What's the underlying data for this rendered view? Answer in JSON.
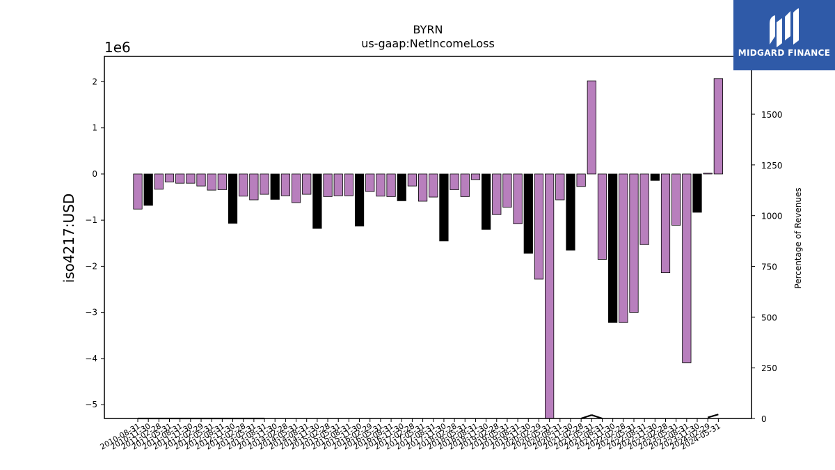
{
  "chart_data": {
    "type": "bar",
    "title": "BYRN",
    "subtitle": "us-gaap:NetIncomeLoss",
    "ylabel": "iso4217:USD",
    "y_offset_label": "1e6",
    "y2label": "Percentage of Revenues",
    "ylim": [
      -5.3,
      2.55
    ],
    "y2lim": [
      0,
      1785
    ],
    "yticks": [
      "2",
      "1",
      "0",
      "−1",
      "−2",
      "−3",
      "−4",
      "−5"
    ],
    "y2ticks": [
      "1750",
      "1500",
      "1250",
      "1000",
      "750",
      "500",
      "250",
      "0"
    ],
    "grid": false,
    "categories": [
      "2010-08-31",
      "2010-11-30",
      "2011-02-28",
      "2011-05-31",
      "2011-08-31",
      "2011-11-30",
      "2012-02-29",
      "2012-05-31",
      "2012-08-31",
      "2012-11-30",
      "2013-02-28",
      "2013-05-31",
      "2013-08-31",
      "2013-11-30",
      "2014-02-28",
      "2014-05-31",
      "2014-08-31",
      "2014-11-30",
      "2015-02-28",
      "2015-05-31",
      "2015-08-31",
      "2015-11-30",
      "2016-02-29",
      "2016-05-31",
      "2016-08-31",
      "2016-11-30",
      "2017-02-28",
      "2017-05-31",
      "2017-08-31",
      "2017-11-30",
      "2018-02-28",
      "2018-05-31",
      "2018-08-31",
      "2018-11-30",
      "2019-02-28",
      "2019-05-31",
      "2019-08-31",
      "2019-11-30",
      "2020-02-29",
      "2020-05-31",
      "2020-08-31",
      "2020-11-30",
      "2021-02-28",
      "2021-05-31",
      "2021-08-31",
      "2021-11-30",
      "2022-02-28",
      "2022-05-31",
      "2022-08-31",
      "2022-11-30",
      "2023-02-28",
      "2023-05-31",
      "2023-08-31",
      "2023-11-30",
      "2024-02-29",
      "2024-05-31"
    ],
    "values": [
      -0.76,
      -0.68,
      -0.33,
      -0.17,
      -0.2,
      -0.2,
      -0.26,
      -0.35,
      -0.34,
      -1.07,
      -0.48,
      -0.56,
      -0.44,
      -0.55,
      -0.47,
      -0.62,
      -0.44,
      -1.18,
      -0.49,
      -0.47,
      -0.47,
      -1.13,
      -0.38,
      -0.48,
      -0.49,
      -0.58,
      -0.26,
      -0.59,
      -0.5,
      -1.45,
      -0.34,
      -0.49,
      -0.12,
      -1.2,
      -0.88,
      -0.72,
      -1.08,
      -1.72,
      -2.28,
      -5.4,
      -0.56,
      -1.65,
      -0.27,
      2.02,
      -1.85,
      -3.22,
      -3.22,
      -3.0,
      -1.53,
      -0.14,
      -2.14,
      -1.11,
      -4.09,
      -0.83,
      0.02,
      2.07
    ],
    "highlighted": [
      1,
      9,
      13,
      17,
      21,
      25,
      29,
      33,
      37,
      41,
      45,
      49,
      53
    ],
    "colors": {
      "bar": "#b87fbd",
      "highlight": "#000000",
      "edge": "#000000",
      "line": "#000000"
    },
    "pct_of_revenues": [
      0,
      0,
      0,
      0,
      0,
      0,
      0,
      0,
      0,
      0,
      0,
      0,
      0,
      null,
      null,
      0,
      null,
      null,
      null,
      0,
      null,
      null,
      null,
      null,
      null,
      null,
      null,
      null,
      null,
      null,
      null,
      null,
      null,
      null,
      null,
      null,
      null,
      null,
      null,
      null,
      null,
      null,
      0,
      17,
      0,
      null,
      null,
      null,
      null,
      0,
      null,
      null,
      null,
      null,
      5,
      20
    ]
  },
  "logo": {
    "name": "MIDGARD FINANCE"
  }
}
